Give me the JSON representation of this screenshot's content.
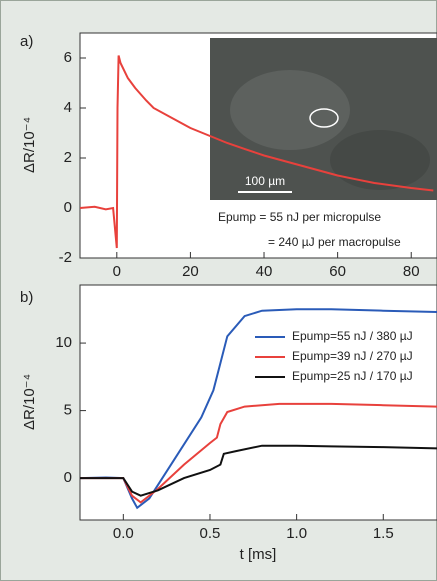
{
  "chart_data": [
    {
      "type": "line",
      "panel_label": "a)",
      "y_label": "ΔR/10⁻⁴",
      "x": [
        -10,
        -6,
        -3,
        -1,
        0,
        0.2,
        0.5,
        1,
        3,
        5,
        8,
        10,
        15,
        20,
        25,
        30,
        35,
        40,
        45,
        50,
        55,
        60,
        65,
        70,
        75,
        80,
        86
      ],
      "series": [
        {
          "color": "#e8413c",
          "values": [
            0,
            0.05,
            -0.05,
            0,
            -1.6,
            4,
            6.1,
            5.8,
            5.2,
            4.8,
            4.3,
            4.0,
            3.6,
            3.2,
            2.9,
            2.6,
            2.35,
            2.1,
            1.9,
            1.7,
            1.5,
            1.3,
            1.15,
            1.0,
            0.9,
            0.8,
            0.7
          ]
        }
      ],
      "xlim": [
        -10,
        87
      ],
      "ylim": [
        -2,
        7
      ],
      "xticks": [
        0,
        20,
        40,
        60,
        80
      ],
      "yticks": [
        -2,
        0,
        2,
        4,
        6
      ],
      "annotations": [
        "100 µm",
        "Epump  = 55 nJ per micropulse",
        "= 240 µJ per macropulse"
      ]
    },
    {
      "type": "line",
      "panel_label": "b)",
      "y_label": "ΔR/10⁻⁴",
      "x_label": "t [ms]",
      "series": [
        {
          "name": "Epump=55 nJ / 380 µJ",
          "color": "#2a5bb8",
          "x": [
            -0.25,
            -0.1,
            0,
            0.05,
            0.08,
            0.15,
            0.3,
            0.45,
            0.52,
            0.55,
            0.6,
            0.7,
            0.8,
            1.0,
            1.2,
            1.5,
            1.81
          ],
          "values": [
            0,
            0.05,
            0,
            -1.5,
            -2.2,
            -1.5,
            1.5,
            4.5,
            6.5,
            8,
            10.5,
            12,
            12.4,
            12.5,
            12.5,
            12.4,
            12.3
          ]
        },
        {
          "name": "Epump=39 nJ / 270 µJ",
          "color": "#e8413c",
          "x": [
            -0.25,
            -0.1,
            0,
            0.05,
            0.1,
            0.2,
            0.35,
            0.5,
            0.54,
            0.56,
            0.6,
            0.7,
            0.9,
            1.2,
            1.5,
            1.81
          ],
          "values": [
            0,
            0,
            0,
            -1.3,
            -1.8,
            -0.8,
            1,
            2.6,
            3,
            4,
            4.9,
            5.3,
            5.5,
            5.5,
            5.4,
            5.3
          ]
        },
        {
          "name": "Epump=25 nJ / 170 µJ",
          "color": "#111111",
          "x": [
            -0.25,
            -0.1,
            0,
            0.05,
            0.1,
            0.2,
            0.35,
            0.5,
            0.56,
            0.58,
            0.65,
            0.8,
            1.0,
            1.2,
            1.5,
            1.81
          ],
          "values": [
            0,
            0,
            0,
            -1,
            -1.3,
            -0.9,
            0,
            0.6,
            1.0,
            1.8,
            2.0,
            2.4,
            2.4,
            2.35,
            2.3,
            2.2
          ]
        }
      ],
      "xlim": [
        -0.25,
        1.81
      ],
      "ylim": [
        -3.1,
        14.3
      ],
      "xticks": [
        {
          "value": 0,
          "label": "0.0"
        },
        0.5,
        {
          "value": 1,
          "label": "1.0"
        },
        1.5
      ],
      "yticks": [
        0,
        5,
        10
      ]
    }
  ]
}
